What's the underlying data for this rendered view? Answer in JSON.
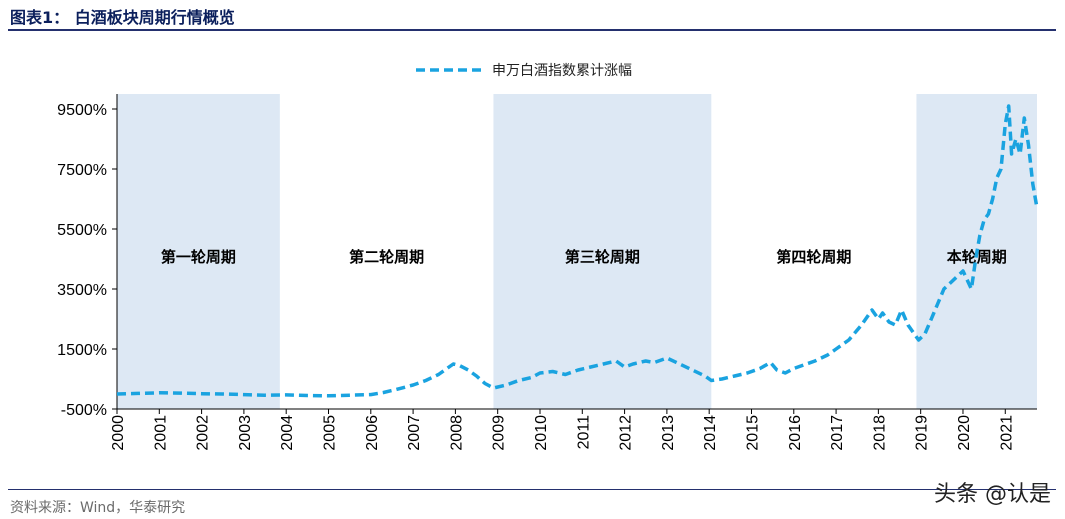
{
  "header": {
    "title": "图表1：   白酒板块周期行情概览"
  },
  "footer": {
    "source": "资料来源：Wind，华泰研究",
    "watermark": "头条 @认是"
  },
  "chart_data": {
    "type": "line",
    "title": "",
    "xlabel": "",
    "ylabel": "",
    "ylim": [
      -500,
      10000
    ],
    "xlim": [
      2000,
      2021.75
    ],
    "y_ticks": [
      -500,
      1500,
      3500,
      5500,
      7500,
      9500
    ],
    "y_tick_labels": [
      "-500%",
      "1500%",
      "3500%",
      "5500%",
      "7500%",
      "9500%"
    ],
    "x_ticks": [
      2000,
      2001,
      2002,
      2003,
      2004,
      2005,
      2006,
      2007,
      2008,
      2009,
      2010,
      2011,
      2012,
      2013,
      2014,
      2015,
      2016,
      2017,
      2018,
      2019,
      2020,
      2021
    ],
    "legend": {
      "placement": "top-center",
      "entries": [
        "申万白酒指数累计涨幅"
      ]
    },
    "line_color": "#1aa3e0",
    "band_color": "#dde8f4",
    "cycles": [
      {
        "label": "第一轮周期",
        "start": 2000.0,
        "end": 2003.85
      },
      {
        "label": "第二轮周期",
        "start": 2003.85,
        "end": 2008.9
      },
      {
        "label": "第三轮周期",
        "start": 2008.9,
        "end": 2014.05
      },
      {
        "label": "第四轮周期",
        "start": 2014.05,
        "end": 2018.9
      },
      {
        "label": "本轮周期",
        "start": 2018.9,
        "end": 2021.75
      }
    ],
    "shaded_cycles": [
      0,
      2,
      4
    ],
    "series": [
      {
        "name": "申万白酒指数累计涨幅",
        "style": "dashed",
        "x": [
          2000.0,
          2000.5,
          2001.0,
          2001.5,
          2002.0,
          2002.5,
          2003.0,
          2003.5,
          2004.0,
          2004.5,
          2005.0,
          2005.5,
          2006.0,
          2006.3,
          2006.6,
          2007.0,
          2007.3,
          2007.6,
          2007.8,
          2007.95,
          2008.1,
          2008.3,
          2008.5,
          2008.7,
          2008.9,
          2009.2,
          2009.5,
          2009.8,
          2010.0,
          2010.3,
          2010.6,
          2010.9,
          2011.2,
          2011.5,
          2011.8,
          2012.0,
          2012.2,
          2012.5,
          2012.7,
          2013.0,
          2013.3,
          2013.6,
          2013.9,
          2014.05,
          2014.3,
          2014.6,
          2014.9,
          2015.2,
          2015.45,
          2015.6,
          2015.8,
          2016.0,
          2016.2,
          2016.5,
          2016.8,
          2017.0,
          2017.3,
          2017.6,
          2017.85,
          2018.0,
          2018.1,
          2018.25,
          2018.4,
          2018.55,
          2018.7,
          2018.85,
          2018.95,
          2019.1,
          2019.25,
          2019.4,
          2019.55,
          2019.7,
          2019.85,
          2020.0,
          2020.1,
          2020.2,
          2020.3,
          2020.4,
          2020.5,
          2020.6,
          2020.7,
          2020.8,
          2020.9,
          2021.0,
          2021.08,
          2021.15,
          2021.25,
          2021.35,
          2021.45,
          2021.55,
          2021.65,
          2021.75
        ],
        "y": [
          0,
          20,
          40,
          30,
          10,
          0,
          -20,
          -40,
          -30,
          -50,
          -60,
          -40,
          -20,
          50,
          150,
          300,
          450,
          650,
          850,
          1000,
          950,
          800,
          600,
          350,
          200,
          300,
          450,
          550,
          700,
          750,
          650,
          800,
          900,
          1000,
          1100,
          900,
          1000,
          1100,
          1050,
          1200,
          1000,
          800,
          600,
          450,
          500,
          600,
          700,
          850,
          1050,
          800,
          700,
          850,
          950,
          1100,
          1300,
          1500,
          1800,
          2300,
          2800,
          2500,
          2700,
          2400,
          2300,
          2800,
          2300,
          2000,
          1800,
          2000,
          2500,
          3000,
          3500,
          3700,
          3900,
          4100,
          3800,
          3500,
          4500,
          5300,
          5800,
          6000,
          6500,
          7200,
          7500,
          9000,
          9600,
          8000,
          8500,
          8000,
          9200,
          8300,
          7000,
          6200
        ]
      }
    ]
  }
}
